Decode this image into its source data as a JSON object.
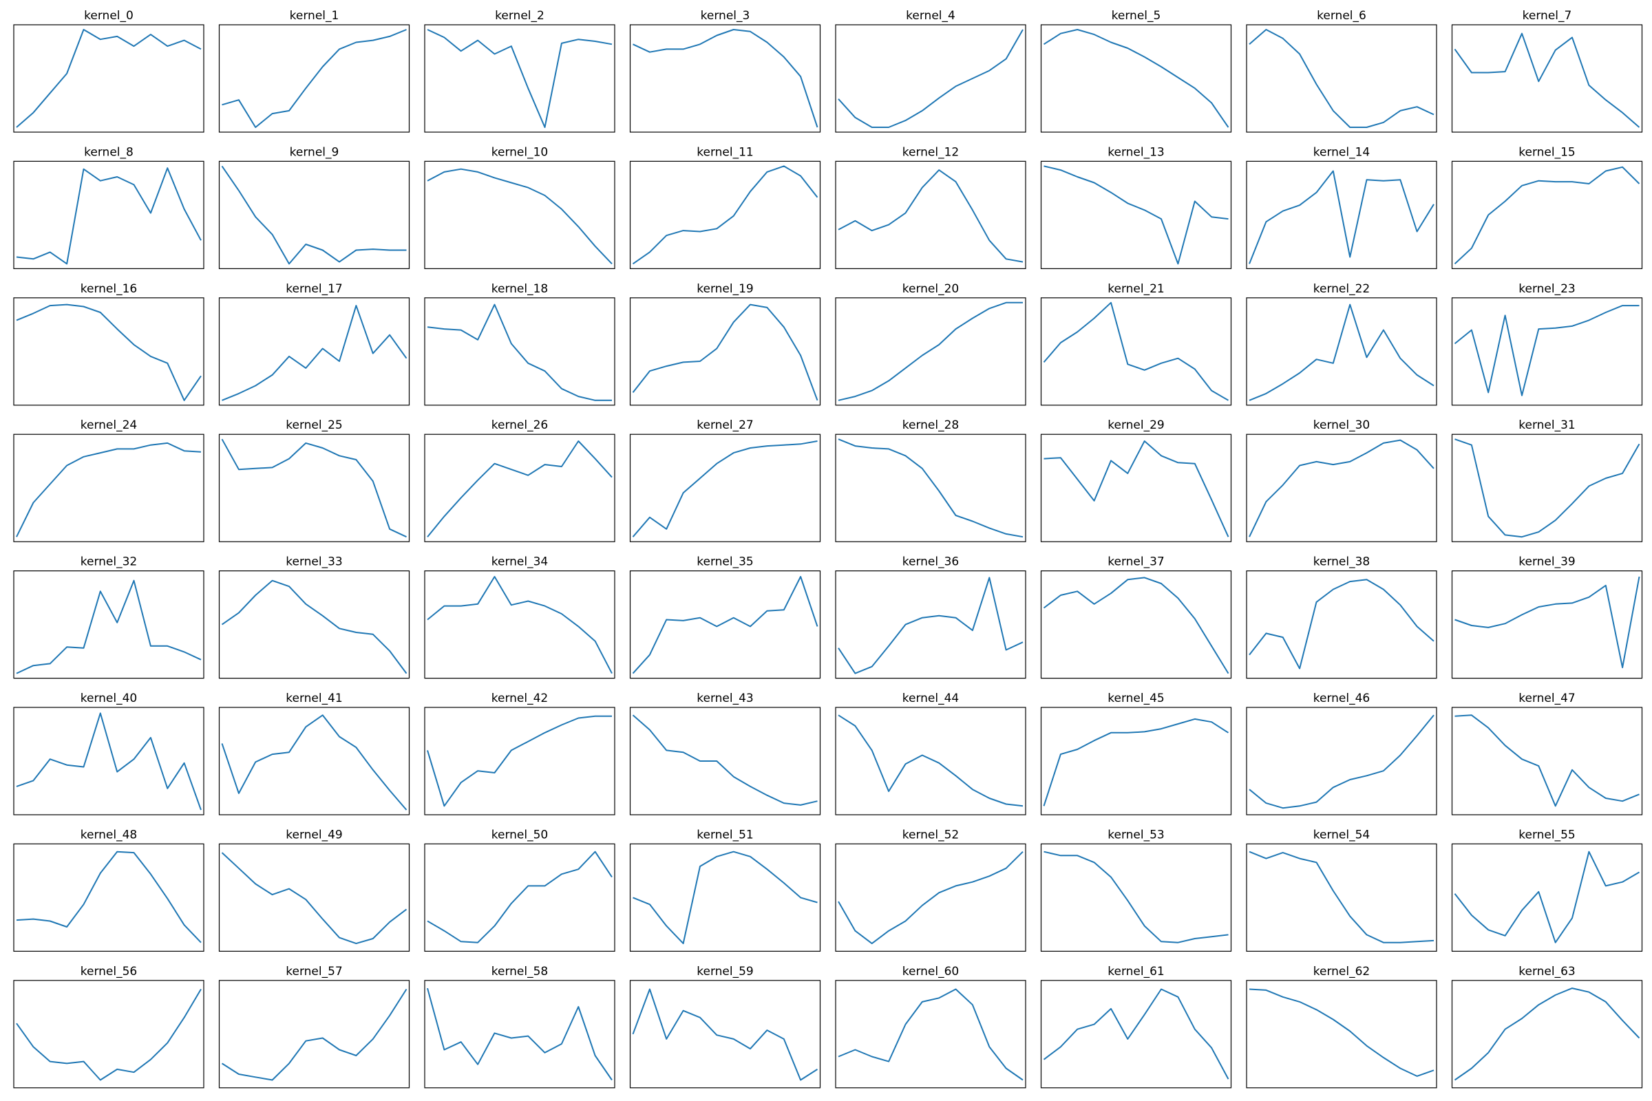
{
  "chart_data": [
    {
      "type": "line",
      "title": "kernel_0",
      "values": [
        0.0,
        0.15,
        0.35,
        0.55,
        1.0,
        0.9,
        0.93,
        0.83,
        0.95,
        0.83,
        0.89,
        0.8
      ]
    },
    {
      "type": "line",
      "title": "kernel_1",
      "values": [
        0.23,
        0.28,
        0.0,
        0.14,
        0.17,
        0.4,
        0.62,
        0.8,
        0.87,
        0.89,
        0.93,
        1.0
      ]
    },
    {
      "type": "line",
      "title": "kernel_2",
      "values": [
        1.0,
        0.92,
        0.78,
        0.89,
        0.75,
        0.83,
        0.4,
        0.0,
        0.86,
        0.9,
        0.88,
        0.85
      ]
    },
    {
      "type": "line",
      "title": "kernel_3",
      "values": [
        0.85,
        0.77,
        0.8,
        0.8,
        0.85,
        0.94,
        1.0,
        0.98,
        0.87,
        0.72,
        0.52,
        0.0
      ]
    },
    {
      "type": "line",
      "title": "kernel_4",
      "values": [
        0.29,
        0.1,
        0.0,
        0.0,
        0.07,
        0.17,
        0.3,
        0.42,
        0.5,
        0.58,
        0.7,
        1.0
      ]
    },
    {
      "type": "line",
      "title": "kernel_5",
      "values": [
        0.85,
        0.96,
        1.0,
        0.95,
        0.87,
        0.81,
        0.72,
        0.62,
        0.51,
        0.4,
        0.25,
        0.0
      ]
    },
    {
      "type": "line",
      "title": "kernel_6",
      "values": [
        0.85,
        1.0,
        0.91,
        0.75,
        0.44,
        0.17,
        0.0,
        0.0,
        0.05,
        0.17,
        0.21,
        0.13
      ]
    },
    {
      "type": "line",
      "title": "kernel_7",
      "values": [
        0.8,
        0.56,
        0.56,
        0.57,
        0.96,
        0.47,
        0.79,
        0.92,
        0.43,
        0.28,
        0.15,
        0.0
      ]
    },
    {
      "type": "line",
      "title": "kernel_8",
      "values": [
        0.07,
        0.05,
        0.12,
        0.0,
        0.97,
        0.85,
        0.89,
        0.81,
        0.52,
        0.98,
        0.56,
        0.24
      ]
    },
    {
      "type": "line",
      "title": "kernel_9",
      "values": [
        1.0,
        0.75,
        0.48,
        0.3,
        0.0,
        0.2,
        0.14,
        0.02,
        0.14,
        0.15,
        0.14,
        0.14
      ]
    },
    {
      "type": "line",
      "title": "kernel_10",
      "values": [
        0.85,
        0.94,
        0.97,
        0.94,
        0.88,
        0.83,
        0.78,
        0.7,
        0.56,
        0.38,
        0.18,
        0.0
      ]
    },
    {
      "type": "line",
      "title": "kernel_11",
      "values": [
        0.0,
        0.12,
        0.29,
        0.34,
        0.33,
        0.36,
        0.49,
        0.74,
        0.94,
        1.0,
        0.9,
        0.68
      ]
    },
    {
      "type": "line",
      "title": "kernel_12",
      "values": [
        0.35,
        0.44,
        0.34,
        0.4,
        0.52,
        0.78,
        0.96,
        0.84,
        0.55,
        0.24,
        0.05,
        0.02
      ]
    },
    {
      "type": "line",
      "title": "kernel_13",
      "values": [
        1.0,
        0.96,
        0.89,
        0.83,
        0.73,
        0.62,
        0.55,
        0.46,
        0.0,
        0.64,
        0.48,
        0.46
      ]
    },
    {
      "type": "line",
      "title": "kernel_14",
      "values": [
        0.0,
        0.43,
        0.54,
        0.6,
        0.73,
        0.95,
        0.07,
        0.86,
        0.85,
        0.86,
        0.33,
        0.61
      ]
    },
    {
      "type": "line",
      "title": "kernel_15",
      "values": [
        0.0,
        0.16,
        0.5,
        0.64,
        0.8,
        0.85,
        0.84,
        0.84,
        0.82,
        0.95,
        0.99,
        0.82
      ]
    },
    {
      "type": "line",
      "title": "kernel_16",
      "values": [
        0.82,
        0.89,
        0.97,
        0.98,
        0.96,
        0.9,
        0.73,
        0.57,
        0.45,
        0.38,
        0.0,
        0.25
      ]
    },
    {
      "type": "line",
      "title": "kernel_17",
      "values": [
        0.0,
        0.07,
        0.15,
        0.26,
        0.45,
        0.33,
        0.53,
        0.4,
        0.97,
        0.48,
        0.67,
        0.43
      ]
    },
    {
      "type": "line",
      "title": "kernel_18",
      "values": [
        0.75,
        0.73,
        0.72,
        0.62,
        0.98,
        0.58,
        0.38,
        0.3,
        0.12,
        0.04,
        0.0,
        0.0
      ]
    },
    {
      "type": "line",
      "title": "kernel_19",
      "values": [
        0.08,
        0.3,
        0.35,
        0.39,
        0.4,
        0.53,
        0.8,
        0.98,
        0.95,
        0.75,
        0.46,
        0.0
      ]
    },
    {
      "type": "line",
      "title": "kernel_20",
      "values": [
        0.0,
        0.04,
        0.1,
        0.2,
        0.33,
        0.46,
        0.57,
        0.73,
        0.84,
        0.94,
        1.0,
        1.0
      ]
    },
    {
      "type": "line",
      "title": "kernel_21",
      "values": [
        0.39,
        0.59,
        0.7,
        0.84,
        1.0,
        0.37,
        0.31,
        0.38,
        0.43,
        0.32,
        0.1,
        0.0
      ]
    },
    {
      "type": "line",
      "title": "kernel_22",
      "values": [
        0.0,
        0.07,
        0.17,
        0.28,
        0.42,
        0.38,
        0.98,
        0.44,
        0.72,
        0.43,
        0.26,
        0.15
      ]
    },
    {
      "type": "line",
      "title": "kernel_23",
      "values": [
        0.58,
        0.72,
        0.08,
        0.87,
        0.05,
        0.73,
        0.74,
        0.76,
        0.82,
        0.9,
        0.97,
        0.97
      ]
    },
    {
      "type": "line",
      "title": "kernel_24",
      "values": [
        0.0,
        0.35,
        0.54,
        0.73,
        0.82,
        0.86,
        0.9,
        0.9,
        0.94,
        0.96,
        0.88,
        0.87
      ]
    },
    {
      "type": "line",
      "title": "kernel_25",
      "values": [
        1.0,
        0.69,
        0.7,
        0.71,
        0.8,
        0.96,
        0.91,
        0.83,
        0.79,
        0.57,
        0.08,
        0.0
      ]
    },
    {
      "type": "line",
      "title": "kernel_26",
      "values": [
        0.0,
        0.21,
        0.4,
        0.58,
        0.75,
        0.69,
        0.63,
        0.74,
        0.72,
        0.98,
        0.8,
        0.61
      ]
    },
    {
      "type": "line",
      "title": "kernel_27",
      "values": [
        0.0,
        0.2,
        0.08,
        0.45,
        0.6,
        0.75,
        0.86,
        0.91,
        0.93,
        0.94,
        0.95,
        0.98
      ]
    },
    {
      "type": "line",
      "title": "kernel_28",
      "values": [
        1.0,
        0.93,
        0.91,
        0.9,
        0.83,
        0.7,
        0.47,
        0.22,
        0.16,
        0.09,
        0.03,
        0.0
      ]
    },
    {
      "type": "line",
      "title": "kernel_29",
      "values": [
        0.8,
        0.81,
        0.59,
        0.37,
        0.78,
        0.65,
        0.98,
        0.83,
        0.76,
        0.75,
        0.38,
        0.0
      ]
    },
    {
      "type": "line",
      "title": "kernel_30",
      "values": [
        0.0,
        0.36,
        0.53,
        0.73,
        0.77,
        0.74,
        0.77,
        0.86,
        0.96,
        0.99,
        0.89,
        0.7
      ]
    },
    {
      "type": "line",
      "title": "kernel_31",
      "values": [
        1.0,
        0.94,
        0.21,
        0.02,
        0.0,
        0.05,
        0.17,
        0.34,
        0.52,
        0.6,
        0.65,
        0.95
      ]
    },
    {
      "type": "line",
      "title": "kernel_32",
      "values": [
        0.0,
        0.08,
        0.1,
        0.27,
        0.26,
        0.84,
        0.52,
        0.95,
        0.28,
        0.28,
        0.22,
        0.14
      ]
    },
    {
      "type": "line",
      "title": "kernel_33",
      "values": [
        0.5,
        0.62,
        0.8,
        0.95,
        0.89,
        0.71,
        0.59,
        0.46,
        0.42,
        0.4,
        0.23,
        0.0
      ]
    },
    {
      "type": "line",
      "title": "kernel_34",
      "values": [
        0.55,
        0.69,
        0.69,
        0.71,
        0.99,
        0.7,
        0.74,
        0.69,
        0.61,
        0.48,
        0.33,
        0.0
      ]
    },
    {
      "type": "line",
      "title": "kernel_35",
      "values": [
        0.0,
        0.19,
        0.55,
        0.54,
        0.57,
        0.48,
        0.57,
        0.48,
        0.64,
        0.65,
        0.99,
        0.48
      ]
    },
    {
      "type": "line",
      "title": "kernel_36",
      "values": [
        0.26,
        0.0,
        0.07,
        0.28,
        0.5,
        0.57,
        0.59,
        0.57,
        0.44,
        0.98,
        0.24,
        0.32
      ]
    },
    {
      "type": "line",
      "title": "kernel_37",
      "values": [
        0.67,
        0.8,
        0.84,
        0.71,
        0.82,
        0.96,
        0.98,
        0.92,
        0.77,
        0.56,
        0.28,
        0.0
      ]
    },
    {
      "type": "line",
      "title": "kernel_38",
      "values": [
        0.19,
        0.41,
        0.37,
        0.05,
        0.73,
        0.86,
        0.94,
        0.96,
        0.86,
        0.7,
        0.48,
        0.33
      ]
    },
    {
      "type": "line",
      "title": "kernel_39",
      "values": [
        0.55,
        0.49,
        0.47,
        0.51,
        0.6,
        0.68,
        0.71,
        0.72,
        0.78,
        0.9,
        0.06,
        0.99
      ]
    },
    {
      "type": "line",
      "title": "kernel_40",
      "values": [
        0.24,
        0.3,
        0.52,
        0.46,
        0.44,
        0.99,
        0.39,
        0.52,
        0.74,
        0.22,
        0.48,
        0.0
      ]
    },
    {
      "type": "line",
      "title": "kernel_41",
      "values": [
        0.68,
        0.17,
        0.49,
        0.57,
        0.59,
        0.85,
        0.97,
        0.75,
        0.64,
        0.41,
        0.2,
        0.0
      ]
    },
    {
      "type": "line",
      "title": "kernel_42",
      "values": [
        0.61,
        0.04,
        0.28,
        0.4,
        0.38,
        0.61,
        0.7,
        0.79,
        0.87,
        0.94,
        0.96,
        0.96
      ]
    },
    {
      "type": "line",
      "title": "kernel_43",
      "values": [
        0.97,
        0.82,
        0.61,
        0.59,
        0.5,
        0.5,
        0.34,
        0.24,
        0.15,
        0.07,
        0.05,
        0.09
      ]
    },
    {
      "type": "line",
      "title": "kernel_44",
      "values": [
        0.97,
        0.86,
        0.61,
        0.19,
        0.47,
        0.56,
        0.48,
        0.35,
        0.21,
        0.12,
        0.06,
        0.04
      ]
    },
    {
      "type": "line",
      "title": "kernel_45",
      "values": [
        0.04,
        0.57,
        0.62,
        0.71,
        0.79,
        0.79,
        0.8,
        0.83,
        0.88,
        0.93,
        0.9,
        0.79
      ]
    },
    {
      "type": "line",
      "title": "kernel_46",
      "values": [
        0.21,
        0.07,
        0.02,
        0.04,
        0.08,
        0.23,
        0.31,
        0.35,
        0.4,
        0.56,
        0.76,
        0.97
      ]
    },
    {
      "type": "line",
      "title": "kernel_47",
      "values": [
        0.96,
        0.97,
        0.84,
        0.66,
        0.52,
        0.45,
        0.04,
        0.41,
        0.23,
        0.12,
        0.09,
        0.16
      ]
    },
    {
      "type": "line",
      "title": "kernel_48",
      "values": [
        0.27,
        0.28,
        0.26,
        0.2,
        0.43,
        0.75,
        0.97,
        0.96,
        0.74,
        0.49,
        0.22,
        0.04
      ]
    },
    {
      "type": "line",
      "title": "kernel_49",
      "values": [
        0.96,
        0.8,
        0.64,
        0.53,
        0.59,
        0.48,
        0.28,
        0.09,
        0.03,
        0.08,
        0.25,
        0.38
      ]
    },
    {
      "type": "line",
      "title": "kernel_50",
      "values": [
        0.26,
        0.16,
        0.05,
        0.04,
        0.21,
        0.44,
        0.62,
        0.62,
        0.74,
        0.79,
        0.97,
        0.71
      ]
    },
    {
      "type": "line",
      "title": "kernel_51",
      "values": [
        0.5,
        0.43,
        0.21,
        0.03,
        0.82,
        0.92,
        0.97,
        0.92,
        0.79,
        0.65,
        0.5,
        0.45
      ]
    },
    {
      "type": "line",
      "title": "kernel_52",
      "values": [
        0.46,
        0.16,
        0.03,
        0.16,
        0.26,
        0.42,
        0.55,
        0.62,
        0.66,
        0.72,
        0.8,
        0.97
      ]
    },
    {
      "type": "line",
      "title": "kernel_53",
      "values": [
        0.97,
        0.93,
        0.93,
        0.86,
        0.71,
        0.47,
        0.21,
        0.05,
        0.04,
        0.08,
        0.1,
        0.12
      ]
    },
    {
      "type": "line",
      "title": "kernel_54",
      "values": [
        0.97,
        0.9,
        0.96,
        0.9,
        0.86,
        0.57,
        0.31,
        0.12,
        0.04,
        0.04,
        0.05,
        0.06
      ]
    },
    {
      "type": "line",
      "title": "kernel_55",
      "values": [
        0.54,
        0.32,
        0.17,
        0.11,
        0.37,
        0.56,
        0.04,
        0.29,
        0.97,
        0.62,
        0.66,
        0.76
      ]
    },
    {
      "type": "line",
      "title": "kernel_56",
      "values": [
        0.61,
        0.37,
        0.22,
        0.2,
        0.22,
        0.03,
        0.14,
        0.11,
        0.24,
        0.41,
        0.67,
        0.96
      ]
    },
    {
      "type": "line",
      "title": "kernel_57",
      "values": [
        0.2,
        0.09,
        0.06,
        0.03,
        0.2,
        0.43,
        0.46,
        0.34,
        0.28,
        0.45,
        0.69,
        0.96
      ]
    },
    {
      "type": "line",
      "title": "kernel_58",
      "values": [
        0.97,
        0.34,
        0.42,
        0.19,
        0.51,
        0.46,
        0.48,
        0.31,
        0.4,
        0.78,
        0.28,
        0.03
      ]
    },
    {
      "type": "line",
      "title": "kernel_59",
      "values": [
        0.5,
        0.96,
        0.45,
        0.74,
        0.67,
        0.49,
        0.45,
        0.35,
        0.54,
        0.45,
        0.03,
        0.14
      ]
    },
    {
      "type": "line",
      "title": "kernel_60",
      "values": [
        0.27,
        0.34,
        0.27,
        0.22,
        0.6,
        0.83,
        0.87,
        0.96,
        0.8,
        0.37,
        0.15,
        0.03
      ]
    },
    {
      "type": "line",
      "title": "kernel_61",
      "values": [
        0.24,
        0.37,
        0.55,
        0.6,
        0.76,
        0.45,
        0.7,
        0.96,
        0.88,
        0.55,
        0.36,
        0.04
      ]
    },
    {
      "type": "line",
      "title": "kernel_62",
      "values": [
        0.96,
        0.95,
        0.88,
        0.83,
        0.75,
        0.65,
        0.53,
        0.38,
        0.26,
        0.15,
        0.07,
        0.13
      ]
    },
    {
      "type": "line",
      "title": "kernel_63",
      "values": [
        0.03,
        0.15,
        0.31,
        0.55,
        0.66,
        0.8,
        0.9,
        0.97,
        0.93,
        0.83,
        0.64,
        0.46
      ]
    }
  ],
  "colors": {
    "line": "#1f77b4",
    "frame": "#000000",
    "background": "#ffffff"
  }
}
